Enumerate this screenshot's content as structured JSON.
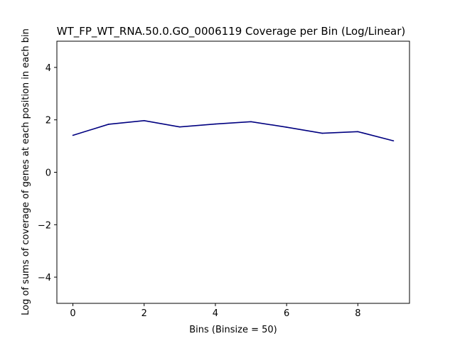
{
  "chart_data": {
    "type": "line",
    "title": "WT_FP_WT_RNA.50.0.GO_0006119 Coverage per Bin (Log/Linear)",
    "xlabel": "Bins (Binsize = 50)",
    "ylabel": "Log of sums of coverage of genes at each position in each bin",
    "x": [
      0,
      1,
      2,
      3,
      4,
      5,
      6,
      7,
      8,
      9
    ],
    "y": [
      1.41,
      1.83,
      1.97,
      1.73,
      1.84,
      1.93,
      1.72,
      1.49,
      1.55,
      1.2
    ],
    "xlim": [
      -0.45,
      9.45
    ],
    "ylim": [
      -5,
      5
    ],
    "xticks": [
      0,
      2,
      4,
      6,
      8
    ],
    "yticks": [
      -4,
      -2,
      0,
      2,
      4
    ],
    "xtick_labels": [
      "0",
      "2",
      "4",
      "6",
      "8"
    ],
    "ytick_labels": [
      "−4",
      "−2",
      "0",
      "2",
      "4"
    ],
    "line_color": "#000080",
    "grid": false,
    "legend": "none"
  }
}
